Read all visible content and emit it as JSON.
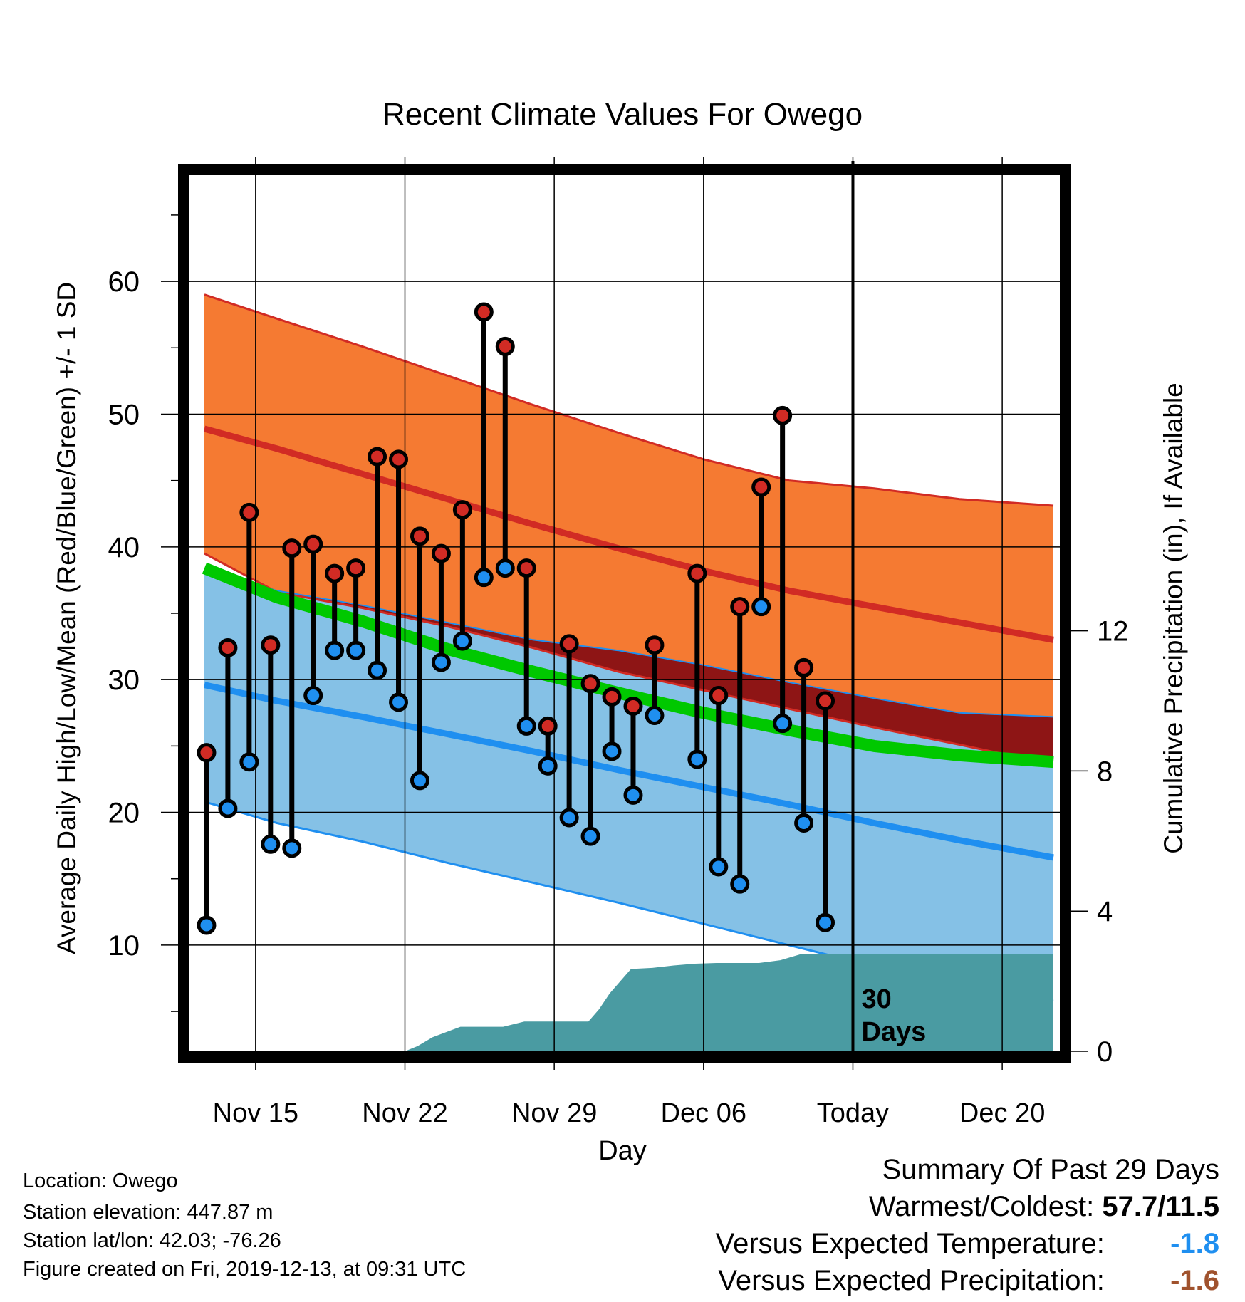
{
  "chart_data": {
    "type": "line",
    "title": "Recent Climate Values For Owego",
    "xlabel": "Day",
    "ylabel": "Average Daily High/Low/Mean (Red/Blue/Green) +/- 1 SD",
    "y2label": "Cumulative Precipitation (in), If Available",
    "x_ticks": [
      {
        "label": "Nov 15",
        "day": 15
      },
      {
        "label": "Nov 22",
        "day": 22
      },
      {
        "label": "Nov 29",
        "day": 29
      },
      {
        "label": "Dec 06",
        "day": 36
      },
      {
        "label": "Today",
        "day": 43
      },
      {
        "label": "Dec 20",
        "day": 50
      }
    ],
    "xlim": [
      11.9,
      52.7
    ],
    "ylim": [
      2,
      68
    ],
    "y_ticks": [
      10,
      20,
      30,
      40,
      50,
      60
    ],
    "y2lim": [
      0,
      25
    ],
    "y2_ticks": [
      0,
      4,
      8,
      12
    ],
    "today_day": 43,
    "today_annotation": "30\nDays",
    "normals": {
      "days": [
        12.6,
        16,
        20,
        24,
        28,
        32,
        36,
        40,
        44,
        48,
        52.4
      ],
      "high_mean": [
        48.9,
        47.4,
        45.5,
        43.6,
        41.7,
        39.9,
        38.2,
        36.7,
        35.5,
        34.3,
        33.0
      ],
      "high_upper": [
        59.0,
        57.2,
        55.1,
        52.9,
        50.7,
        48.6,
        46.6,
        45.0,
        44.4,
        43.6,
        43.1
      ],
      "high_lower": [
        39.5,
        36.6,
        35.4,
        34.0,
        32.4,
        30.6,
        29.2,
        27.8,
        26.4,
        25.1,
        23.6
      ],
      "low_mean": [
        29.6,
        28.4,
        27.2,
        25.9,
        24.6,
        23.2,
        21.9,
        20.6,
        19.2,
        17.9,
        16.6
      ],
      "low_upper": [
        38.3,
        36.7,
        35.6,
        34.3,
        33.0,
        32.2,
        31.1,
        29.8,
        28.6,
        27.5,
        27.2
      ],
      "low_lower": [
        20.8,
        19.2,
        17.8,
        16.2,
        14.7,
        13.2,
        11.6,
        10.0,
        8.4,
        6.8,
        5.8
      ],
      "mean_mean": [
        38.4,
        36.2,
        34.4,
        32.3,
        30.6,
        29.0,
        27.5,
        26.2,
        25.0,
        24.3,
        23.8
      ]
    },
    "observed": {
      "days": [
        12.7,
        13.7,
        14.7,
        15.7,
        16.7,
        17.7,
        18.7,
        19.7,
        20.7,
        21.7,
        22.7,
        23.7,
        24.7,
        25.7,
        26.7,
        27.7,
        28.7,
        29.7,
        30.7,
        31.7,
        32.7,
        33.7,
        35.7,
        36.7,
        37.7,
        38.7,
        39.7,
        40.7,
        41.7
      ],
      "high": [
        24.5,
        32.4,
        42.6,
        32.6,
        39.9,
        40.2,
        38.0,
        38.4,
        46.8,
        46.6,
        40.8,
        39.5,
        42.8,
        57.7,
        55.1,
        38.4,
        26.5,
        32.7,
        29.7,
        28.7,
        28.0,
        32.6,
        38.0,
        28.8,
        35.5,
        44.5,
        49.9,
        30.9,
        28.4
      ],
      "low": [
        11.5,
        20.3,
        23.8,
        17.6,
        17.3,
        28.8,
        32.2,
        32.2,
        30.7,
        28.3,
        22.4,
        31.3,
        32.9,
        37.7,
        38.4,
        26.5,
        23.5,
        19.6,
        18.2,
        24.6,
        21.3,
        27.3,
        24.0,
        15.9,
        14.6,
        35.5,
        26.7,
        19.2,
        11.7
      ]
    },
    "precip_cumulative": {
      "days": [
        12.6,
        22.0,
        22.6,
        23.3,
        24.6,
        25.6,
        26.6,
        27.6,
        28.6,
        29.6,
        30.6,
        31.1,
        31.6,
        32.6,
        33.6,
        34.6,
        35.6,
        36.6,
        37.6,
        38.6,
        39.6,
        40.6,
        41.6,
        43.0,
        46.0,
        48.0,
        52.4
      ],
      "values": [
        0,
        0,
        0.15,
        0.4,
        0.7,
        0.7,
        0.7,
        0.85,
        0.85,
        0.85,
        0.85,
        1.2,
        1.65,
        2.35,
        2.38,
        2.45,
        2.5,
        2.52,
        2.52,
        2.52,
        2.6,
        2.78,
        2.78,
        2.78,
        2.78,
        2.78,
        2.78
      ]
    },
    "colors": {
      "high_band": "#f57a32",
      "high_line": "#d12b24",
      "low_band": "#85c1e6",
      "low_line": "#1f8ff0",
      "mean_line": "#00c800",
      "overlap": "#8e1515",
      "precip": "#4a9ba2",
      "high_marker": "#d12b24",
      "low_marker": "#1f8ff0"
    }
  },
  "info": {
    "location": "Location: Owego",
    "elevation": "Station elevation: 447.87 m",
    "latlon": "Station lat/lon: 42.03; -76.26",
    "created": "Figure created on Fri, 2019-12-13, at 09:31 UTC"
  },
  "summary": {
    "heading": "Summary Of Past 29 Days",
    "warmest_label": "Warmest/Coldest:",
    "warmest_value": "57.7/11.5",
    "temp_label": "Versus Expected Temperature:",
    "temp_value": "-1.8",
    "temp_color": "#1f8ff0",
    "precip_label": "Versus Expected Precipitation:",
    "precip_value": "-1.6",
    "precip_color": "#a0522d"
  }
}
